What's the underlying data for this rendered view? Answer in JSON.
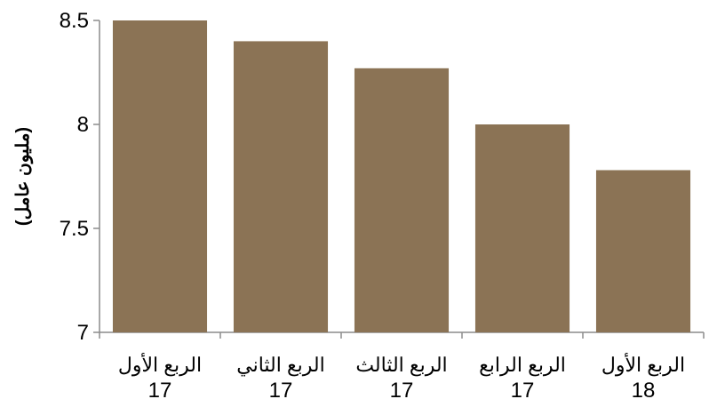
{
  "chart_data": {
    "type": "bar",
    "title": "",
    "xlabel": "",
    "ylabel": "(مليون عامل)",
    "ylim": [
      7,
      8.5
    ],
    "yticks": [
      "7",
      "7.5",
      "8",
      "8.5"
    ],
    "grid": false,
    "bar_color": "#8B7355",
    "categories": [
      {
        "line1": "الربع الأول",
        "line2": "17"
      },
      {
        "line1": "الربع الثاني",
        "line2": "17"
      },
      {
        "line1": "الربع الثالث",
        "line2": "17"
      },
      {
        "line1": "الربع الرابع",
        "line2": "17"
      },
      {
        "line1": "الربع الأول",
        "line2": "18"
      }
    ],
    "values": [
      8.5,
      8.4,
      8.27,
      8.0,
      7.78
    ]
  }
}
